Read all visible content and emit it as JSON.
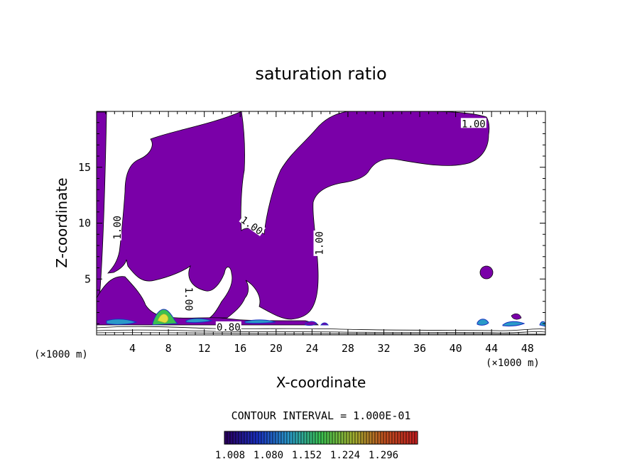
{
  "chart_data": {
    "type": "contour",
    "title": "saturation ratio",
    "xlabel": "X-coordinate",
    "ylabel": "Z-coordinate",
    "x_unit_left": "(×1000 m)",
    "x_unit_right": "(×1000 m)",
    "xlim": [
      0,
      50
    ],
    "ylim": [
      0,
      20
    ],
    "x_ticks": [
      4,
      8,
      12,
      16,
      20,
      24,
      28,
      32,
      36,
      40,
      44,
      48
    ],
    "y_ticks": [
      5,
      10,
      15
    ],
    "fill_color": "#7a00a8",
    "contour_labels": [
      {
        "text": "1.00",
        "x": 42,
        "y": 18.9
      },
      {
        "text": "1.00",
        "x": 2.3,
        "y": 9.6
      },
      {
        "text": "1.00",
        "x": 17.3,
        "y": 9.8
      },
      {
        "text": "1.00",
        "x": 24.8,
        "y": 8.2
      },
      {
        "text": "1.00",
        "x": 10.3,
        "y": 3.2
      },
      {
        "text": "0.80",
        "x": 14.7,
        "y": 0.7
      }
    ],
    "contour_interval_text": "CONTOUR INTERVAL = 1.000E-01",
    "colorbar": {
      "tick_labels": [
        "1.008",
        "1.080",
        "1.152",
        "1.224",
        "1.296"
      ],
      "colors": [
        "#2a0060",
        "#1a30c0",
        "#2a9ac8",
        "#3ac050",
        "#a0b030",
        "#c05020",
        "#c02020"
      ]
    }
  }
}
